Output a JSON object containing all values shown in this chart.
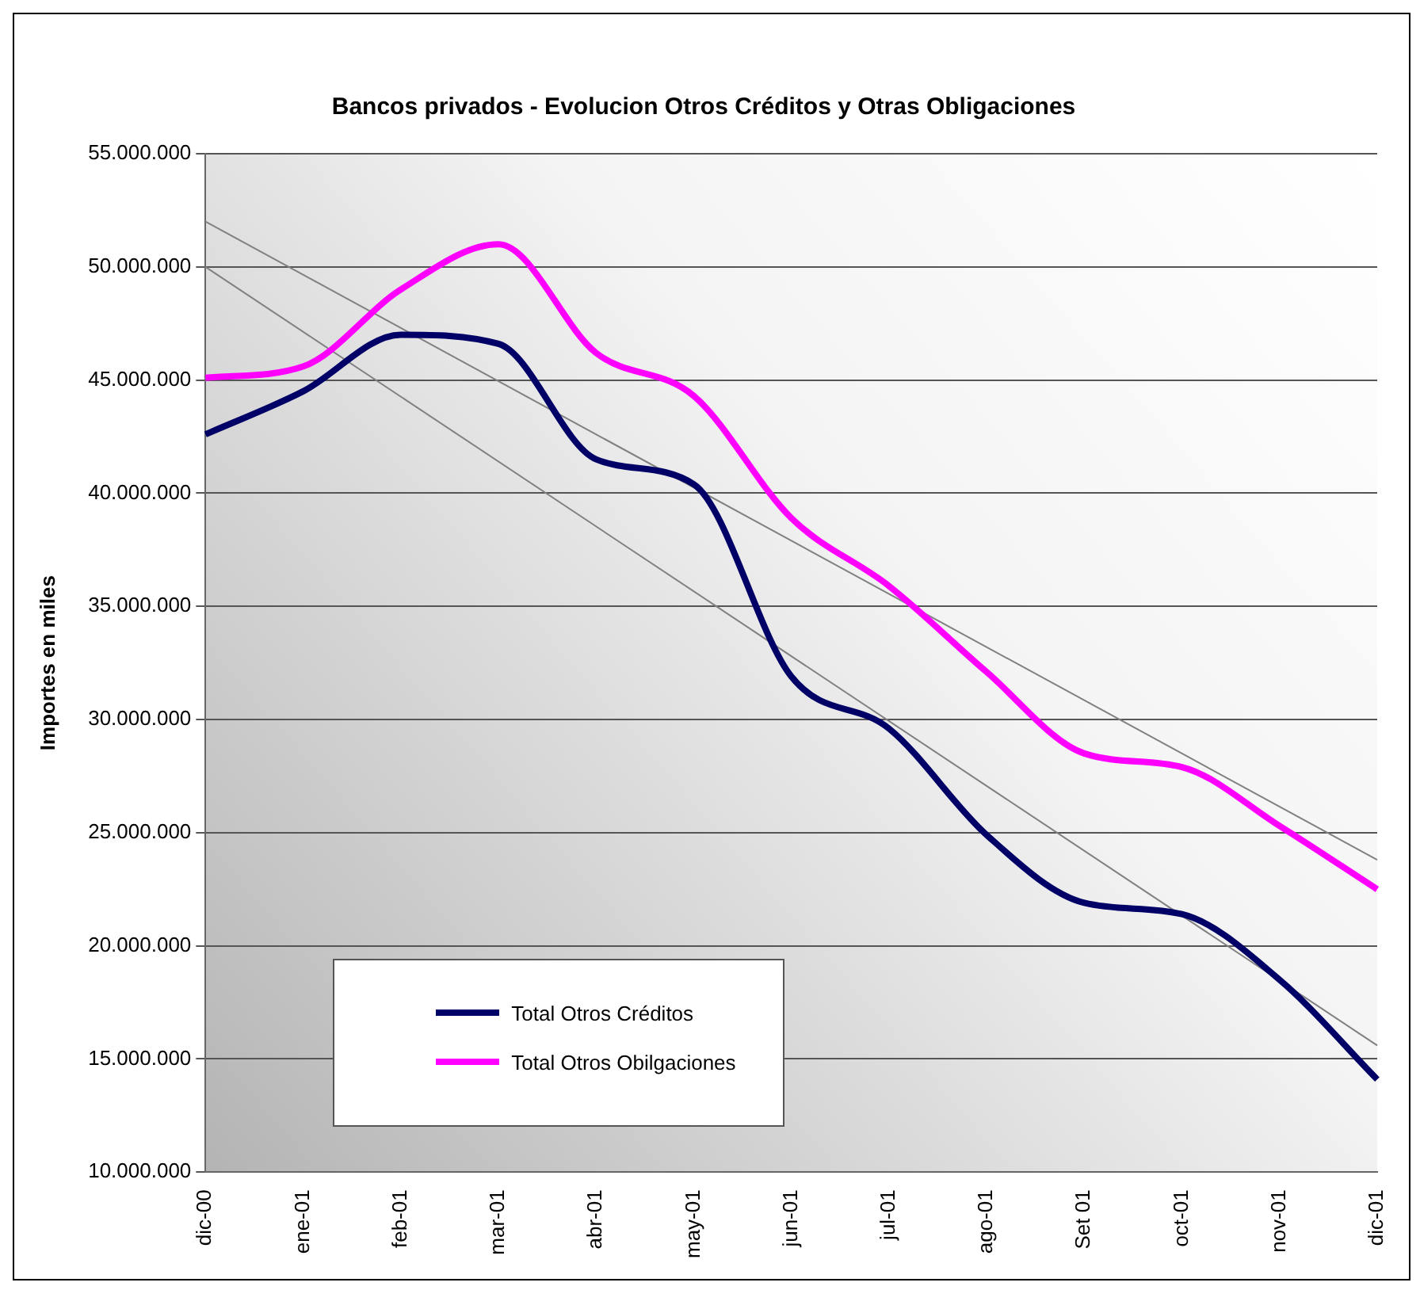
{
  "chart_data": {
    "type": "line",
    "title": "Bancos privados - Evolucion Otros Créditos y Otras Obligaciones",
    "ylabel": "Importes en miles",
    "categories": [
      "dic-00",
      "ene-01",
      "feb-01",
      "mar-01",
      "abr-01",
      "may-01",
      "jun-01",
      "jul-01",
      "ago-01",
      "Set 01",
      "oct-01",
      "nov-01",
      "dic-01"
    ],
    "series": [
      {
        "name": "Total Otros Créditos",
        "color": "#000066",
        "values": [
          42600000,
          44500000,
          47000000,
          46600000,
          41500000,
          40400000,
          31900000,
          29600000,
          24900000,
          21900000,
          21400000,
          18500000,
          14100000
        ]
      },
      {
        "name": "Total Otros Obilgaciones",
        "color": "#ff00ff",
        "values": [
          45100000,
          45600000,
          49000000,
          51000000,
          46200000,
          44300000,
          38900000,
          35900000,
          32100000,
          28500000,
          27900000,
          25300000,
          22500000
        ]
      },
      {
        "type": "line",
        "color": "#808080",
        "values": [
          52000000,
          null,
          null,
          null,
          null,
          null,
          null,
          null,
          null,
          null,
          null,
          null,
          23800000
        ]
      },
      {
        "type": "line",
        "color": "#808080",
        "values": [
          50000000,
          null,
          null,
          null,
          null,
          null,
          null,
          null,
          null,
          null,
          null,
          null,
          15600000
        ]
      }
    ],
    "ylim": [
      10000000,
      55000000
    ],
    "yticks": [
      {
        "value": 10000000,
        "label": "10.000.000"
      },
      {
        "value": 15000000,
        "label": "15.000.000"
      },
      {
        "value": 20000000,
        "label": "20.000.000"
      },
      {
        "value": 25000000,
        "label": "25.000.000"
      },
      {
        "value": 30000000,
        "label": "30.000.000"
      },
      {
        "value": 35000000,
        "label": "35.000.000"
      },
      {
        "value": 40000000,
        "label": "40.000.000"
      },
      {
        "value": 45000000,
        "label": "45.000.000"
      },
      {
        "value": 50000000,
        "label": "50.000.000"
      },
      {
        "value": 55000000,
        "label": "55.000.000"
      }
    ],
    "grid": "y",
    "legend": "bottom left",
    "marker": "none",
    "line_style": "solid"
  }
}
